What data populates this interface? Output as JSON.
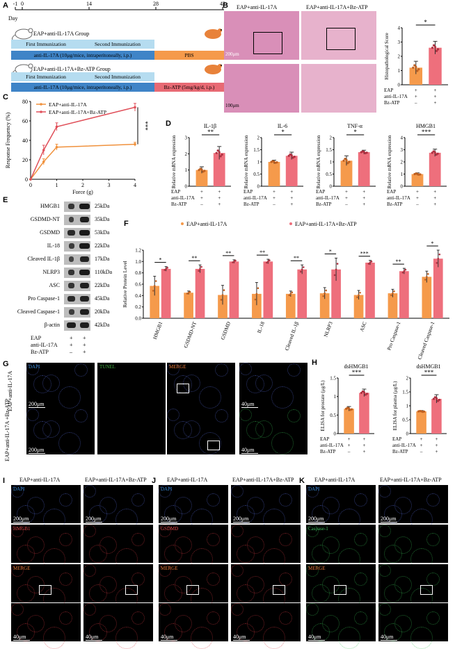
{
  "panels": {
    "A": {
      "label": "A",
      "timeline_ticks": [
        "-1",
        "0",
        "14",
        "28",
        "42"
      ],
      "day_label": "Day",
      "group1_title": "EAP+anti-IL-17A Group",
      "group2_title": "EAP+anti-IL-17A+Bz-ATP Group",
      "first_immunization": "First Immunization",
      "second_immunization": "Second Immunization",
      "antibody_regimen": "anti-IL-17A (10μg/mice, intraperitoneally, i.p.)",
      "antibody_regimen2": "anti-IL-17A (10μg/mice, intraperitoneally, i.p.)",
      "pbs": "PBS",
      "bzatp_regimen": "Bz-ATP (5mg/kg/d, i.p.)",
      "colors": {
        "immunization": "#b5dcf0",
        "antibody": "#3f84c7",
        "pbs": "#f59a4b",
        "bzatp": "#e86a74"
      }
    },
    "B": {
      "label": "B",
      "col1": "EAP+anti-IL-17A",
      "col2": "EAP+anti-IL-17A+Bz-ATP",
      "scale_top": "200μm",
      "scale_bottom": "100μm",
      "chart_ylabel": "Histopathological Score",
      "sig": "*"
    },
    "C": {
      "label": "C"
    },
    "D": {
      "label": "D"
    },
    "E": {
      "label": "E",
      "proteins": [
        "HMGB1",
        "GSDMD-NT",
        "GSDMD",
        "IL-18",
        "Cleaved IL-1β",
        "NLRP3",
        "ASC",
        "Pro Caspase-1",
        "Cleaved Caspase-1",
        "β-actin"
      ],
      "sizes": [
        "25kDa",
        "35kDa",
        "53kDa",
        "22kDa",
        "17kDa",
        "110kDa",
        "22kDa",
        "45kDa",
        "20kDa",
        "42kDa"
      ],
      "conditions": [
        {
          "name": "EAP",
          "values": [
            "+",
            "+"
          ]
        },
        {
          "name": "anti-IL-17A",
          "values": [
            "+",
            "+"
          ]
        },
        {
          "name": "Bz-ATP",
          "values": [
            "–",
            "+"
          ]
        }
      ]
    },
    "F": {
      "label": "F"
    },
    "G": {
      "label": "G",
      "channels": [
        "DAPI",
        "TUNEL",
        "MERGE"
      ],
      "row1": "EAP+anti-IL-17A",
      "row2": "EAP+anti-IL-17A +Bz-ATP",
      "scale": "200μm",
      "scale_zoom": "40μm"
    },
    "H": {
      "label": "H"
    },
    "I": {
      "label": "I",
      "marker": "HMGB1",
      "col1": "EAP+anti-IL-17A",
      "col2": "EAP+anti-IL-17A+Bz-ATP"
    },
    "J": {
      "label": "J",
      "marker": "GSDMD",
      "col1": "EAP+anti-IL-17A",
      "col2": "EAP+anti-IL-17A+Bz-ATP"
    },
    "K": {
      "label": "K",
      "marker": "Caspase-1",
      "col1": "EAP+anti-IL-17A",
      "col2": "EAP+anti-IL-17A+Bz-ATP"
    },
    "IJK_common": {
      "dapi": "DAPI",
      "merge": "MERGE",
      "scale": "200μm",
      "scale_zoom": "40μm"
    }
  },
  "chart_data": [
    {
      "id": "B-histo",
      "type": "bar",
      "categories": [
        "EAP+anti-IL-17A",
        "EAP+anti-IL-17A+Bz-ATP"
      ],
      "values": [
        1.2,
        2.6
      ],
      "errors": [
        0.45,
        0.45
      ],
      "ylabel": "Histopathological Score",
      "ylim": [
        0,
        4
      ],
      "yticks": [
        0,
        1,
        2,
        3,
        4
      ],
      "significance": "*",
      "conditions": [
        {
          "name": "EAP",
          "values": [
            "+",
            "+"
          ]
        },
        {
          "name": "anti-IL-17A",
          "values": [
            "+",
            "+"
          ]
        },
        {
          "name": "Bz-ATP",
          "values": [
            "–",
            "+"
          ]
        }
      ]
    },
    {
      "id": "C-response",
      "type": "line",
      "x": [
        0,
        0.5,
        1,
        4
      ],
      "series": [
        {
          "name": "EAP+anti-IL-17A",
          "values": [
            0,
            18,
            33,
            36
          ],
          "errors": [
            0,
            3,
            3,
            2
          ],
          "color": "#f0913c"
        },
        {
          "name": "EAP+anti-IL-17A+Bz-ATP",
          "values": [
            0,
            30,
            54,
            74
          ],
          "errors": [
            0,
            5,
            4,
            4
          ],
          "color": "#e0505a"
        }
      ],
      "xlabel": "Force (g)",
      "ylabel": "Response Frequency (%)",
      "xlim": [
        0,
        4
      ],
      "ylim": [
        0,
        80
      ],
      "xticks": [
        0,
        1,
        2,
        3,
        4
      ],
      "yticks": [
        0,
        20,
        40,
        60,
        80
      ],
      "significance": "***"
    },
    {
      "id": "D-mrna",
      "type": "bar",
      "ylabel": "Relative mRNA expression",
      "subplots": [
        {
          "title": "IL-1β",
          "values": [
            1.0,
            2.05
          ],
          "errors": [
            0.2,
            0.4
          ],
          "ylim": [
            0,
            3
          ],
          "yticks": [
            0,
            1,
            2,
            3
          ],
          "sig": "**"
        },
        {
          "title": "IL-6",
          "values": [
            1.0,
            1.25
          ],
          "errors": [
            0.07,
            0.15
          ],
          "ylim": [
            0,
            2.0
          ],
          "yticks": [
            0,
            0.5,
            1.0,
            1.5,
            2.0
          ],
          "sig": "*"
        },
        {
          "title": "TNF-α",
          "values": [
            1.05,
            1.4
          ],
          "errors": [
            0.2,
            0.08
          ],
          "ylim": [
            0,
            2.0
          ],
          "yticks": [
            0,
            0.5,
            1.0,
            1.5,
            2.0
          ],
          "sig": "*"
        },
        {
          "title": "HMGB1",
          "values": [
            1.0,
            2.75
          ],
          "errors": [
            0.1,
            0.3
          ],
          "ylim": [
            0,
            4
          ],
          "yticks": [
            0,
            1,
            2,
            3,
            4
          ],
          "sig": "***"
        }
      ],
      "conditions": [
        {
          "name": "EAP",
          "values": [
            "+",
            "+"
          ]
        },
        {
          "name": "anti-IL-17A",
          "values": [
            "+",
            "+"
          ]
        },
        {
          "name": "Bz-ATP",
          "values": [
            "–",
            "+"
          ]
        }
      ]
    },
    {
      "id": "F-protein",
      "type": "bar",
      "categories": [
        "HMGB1",
        "GSDMD-NT",
        "GSDMD",
        "IL-18",
        "Cleaved IL-1β",
        "NLRP3",
        "ASC",
        "Pro Caspase-1",
        "Cleaved Caspase-1"
      ],
      "series": [
        {
          "name": "EAP+anti-IL-17A",
          "values": [
            0.57,
            0.45,
            0.41,
            0.43,
            0.43,
            0.44,
            0.41,
            0.44,
            0.73
          ],
          "errors": [
            0.17,
            0.03,
            0.17,
            0.2,
            0.05,
            0.1,
            0.08,
            0.07,
            0.1
          ],
          "color": "#f59a4b"
        },
        {
          "name": "EAP+anti-IL-17A+Bz-ATP",
          "values": [
            0.87,
            0.87,
            1.0,
            1.0,
            0.86,
            0.86,
            0.98,
            0.83,
            1.05
          ],
          "errors": [
            0.04,
            0.07,
            0.03,
            0.04,
            0.08,
            0.2,
            0.04,
            0.05,
            0.15
          ],
          "color": "#ee6f7c"
        }
      ],
      "significance": [
        "*",
        "**",
        "**",
        "**",
        "**",
        "*",
        "***",
        "**",
        "*"
      ],
      "ylabel": "Relative Protein Level",
      "ylim": [
        0,
        1.2
      ],
      "yticks": [
        0,
        0.2,
        0.4,
        0.6,
        0.8,
        1.0,
        1.2
      ]
    },
    {
      "id": "H-elisa",
      "type": "bar",
      "subplots": [
        {
          "title": "dsHMGB1",
          "ylabel": "ELISA for prostate (μg/L)",
          "values": [
            0.67,
            1.1
          ],
          "errors": [
            0.06,
            0.1
          ],
          "ylim": [
            0,
            1.5
          ],
          "yticks": [
            0,
            0.5,
            1.0,
            1.5
          ],
          "sig": "***"
        },
        {
          "title": "dsHMGB1",
          "ylabel": "ELISA for plasma (μg/L)",
          "values": [
            0.8,
            1.25
          ],
          "errors": [
            0.03,
            0.15
          ],
          "ylim": [
            0,
            2.0
          ],
          "yticks": [
            0,
            0.5,
            1.0,
            1.5,
            2.0
          ],
          "sig": "***"
        }
      ],
      "conditions": [
        {
          "name": "EAP",
          "values": [
            "+",
            "+"
          ]
        },
        {
          "name": "anti-IL-17A",
          "values": [
            "+",
            "+"
          ]
        },
        {
          "name": "Bz-ATP",
          "values": [
            "–",
            "+"
          ]
        }
      ]
    }
  ]
}
